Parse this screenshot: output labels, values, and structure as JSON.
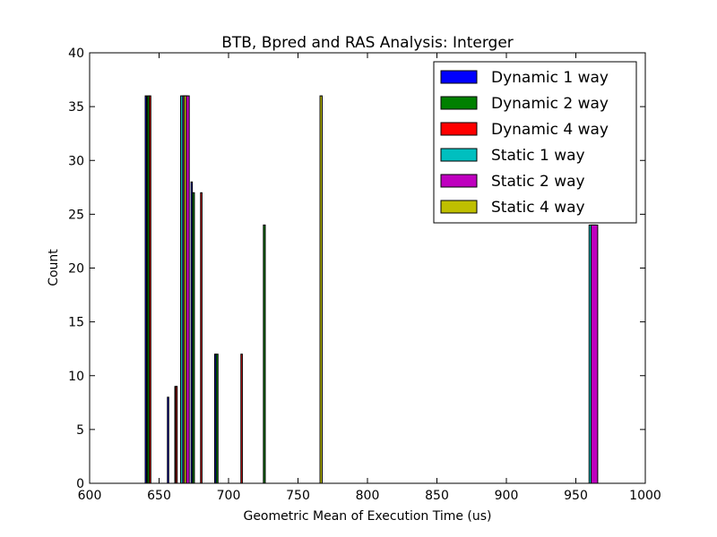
{
  "chart_data": {
    "type": "bar",
    "title": "BTB, Bpred and RAS Analysis: Interger",
    "xlabel": "Geometric Mean of Execution Time (us)",
    "ylabel": "Count",
    "xlim": [
      600,
      1000
    ],
    "ylim": [
      0,
      40
    ],
    "xticks": [
      "600",
      "650",
      "700",
      "750",
      "800",
      "850",
      "900",
      "950",
      "1000"
    ],
    "yticks": [
      "0",
      "5",
      "10",
      "15",
      "20",
      "25",
      "30",
      "35",
      "40"
    ],
    "grid": false,
    "legend_position": "top-right",
    "bins_per_series": 60,
    "series": [
      {
        "name": "Dynamic 1 way",
        "color": "#0000ff",
        "bin_range": [
          640.0,
          700.0
        ],
        "bars": [
          {
            "bin_index": 0,
            "value": 36
          },
          {
            "bin_index": 16,
            "value": 8
          },
          {
            "bin_index": 33,
            "value": 28
          },
          {
            "bin_index": 50,
            "value": 12
          }
        ]
      },
      {
        "name": "Dynamic 2 way",
        "color": "#008000",
        "bin_range": [
          641.5,
          726.5
        ],
        "bars": [
          {
            "bin_index": 0,
            "value": 36
          },
          {
            "bin_index": 14,
            "value": 9
          },
          {
            "bin_index": 23,
            "value": 27
          },
          {
            "bin_index": 35,
            "value": 12
          },
          {
            "bin_index": 59,
            "value": 24
          }
        ]
      },
      {
        "name": "Dynamic 4 way",
        "color": "#ff0000",
        "bin_range": [
          643.0,
          710.0
        ],
        "bars": [
          {
            "bin_index": 0,
            "value": 36
          },
          {
            "bin_index": 17,
            "value": 9
          },
          {
            "bin_index": 33,
            "value": 27
          },
          {
            "bin_index": 59,
            "value": 12
          }
        ]
      },
      {
        "name": "Static 1 way",
        "color": "#00bfbf",
        "bin_range": [
          665.5,
          964.5
        ],
        "bars": [
          {
            "bin_index": 0,
            "value": 36
          },
          {
            "bin_index": 59,
            "value": 24
          }
        ]
      },
      {
        "name": "Static 2 way",
        "color": "#bf00bf",
        "bin_range": [
          667.0,
          966.0
        ],
        "bars": [
          {
            "bin_index": 0,
            "value": 36
          },
          {
            "bin_index": 59,
            "value": 24
          }
        ]
      },
      {
        "name": "Static 4 way",
        "color": "#bfbf00",
        "bin_range": [
          668.0,
          767.5
        ],
        "bars": [
          {
            "bin_index": 0,
            "value": 36
          },
          {
            "bin_index": 59,
            "value": 36
          }
        ]
      }
    ]
  }
}
